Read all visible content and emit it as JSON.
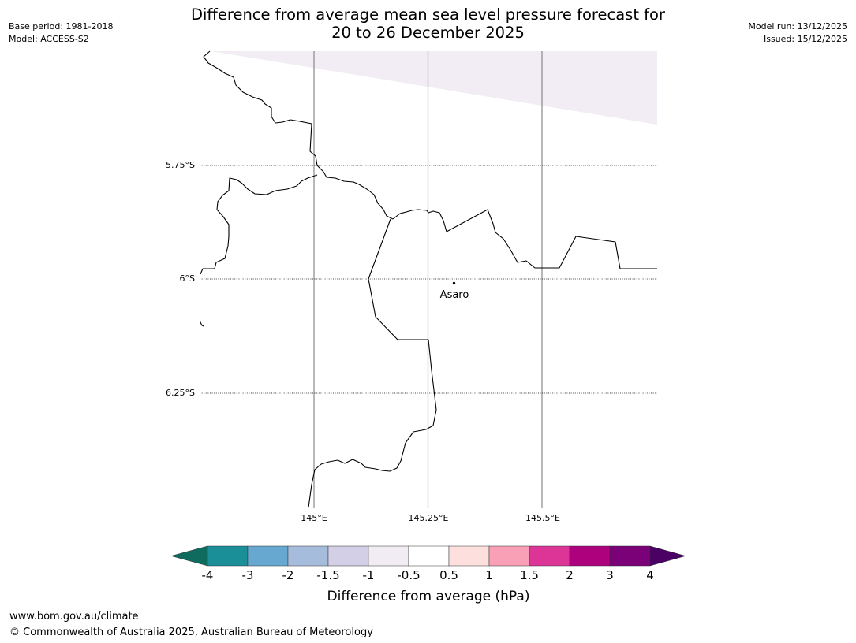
{
  "header": {
    "base_period": "Base period: 1981-2018",
    "model": "Model: ACCESS-S2",
    "model_run": "Model run: 13/12/2025",
    "issued": "Issued: 15/12/2025",
    "title_line1": "Difference from average mean sea level pressure forecast for",
    "title_line2": "20 to 26 December 2025"
  },
  "map": {
    "latitude_labels": [
      "5.75°S",
      "6°S",
      "6.25°S"
    ],
    "longitude_labels": [
      "145°E",
      "145.25°E",
      "145.5°E"
    ],
    "places": [
      {
        "name": "Asaro",
        "lat": -6.01,
        "lon": 145.31
      }
    ],
    "shaded_region": {
      "category": "-1 to -0.5 hPa"
    }
  },
  "colorbar": {
    "label": "Difference from average (hPa)",
    "ticks": [
      "-4",
      "-3",
      "-2",
      "-1.5",
      "-1",
      "-0.5",
      "0.5",
      "1",
      "1.5",
      "2",
      "3",
      "4"
    ],
    "under_color": "#0e6b5e",
    "over_color": "#4b0064",
    "segment_colors": [
      "#1a8f98",
      "#67a8d1",
      "#a6bcdc",
      "#d3cfe6",
      "#f1ecf4",
      "#ffffff",
      "#fde0dd",
      "#f99fb6",
      "#dd3497",
      "#ae017e",
      "#7a0177"
    ]
  },
  "colors": {
    "gridline": "#888888",
    "shaded_region": "#f2ecf4"
  },
  "footer": {
    "url": "www.bom.gov.au/climate",
    "copyright": "© Commonwealth of Australia 2025, Australian Bureau of Meteorology"
  }
}
